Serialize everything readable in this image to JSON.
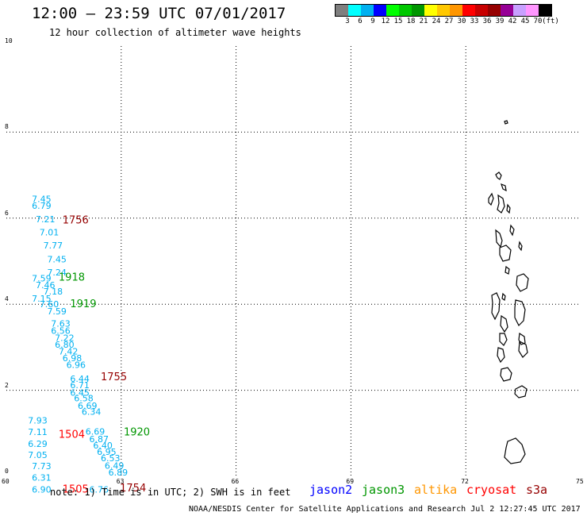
{
  "header": {
    "title": "12:00 – 23:59 UTC 07/01/2017",
    "subtitle": "12 hour collection of altimeter wave heights"
  },
  "colorbar": {
    "colors": [
      "#7f7f7f",
      "#00ffff",
      "#00b0f0",
      "#0000ff",
      "#00ff00",
      "#00c800",
      "#009600",
      "#ffff00",
      "#ffc800",
      "#ff9600",
      "#ff0000",
      "#c80000",
      "#960000",
      "#960096",
      "#c8a0ff",
      "#ff96ff",
      "#000000"
    ],
    "labels": [
      "3",
      "6",
      "9",
      "12",
      "15",
      "18",
      "21",
      "24",
      "27",
      "30",
      "33",
      "36",
      "39",
      "42",
      "45",
      "70",
      "(ft)"
    ]
  },
  "axes": {
    "x_ticks": [
      "60",
      "63",
      "66",
      "69",
      "72",
      "75"
    ],
    "y_ticks": [
      "0",
      "2",
      "4",
      "6",
      "8",
      "10"
    ]
  },
  "map_data": {
    "swh_cyan": [
      {
        "lon": 60.5,
        "lat": 6.45,
        "v": "7.45"
      },
      {
        "lon": 60.5,
        "lat": 6.29,
        "v": "6.79"
      },
      {
        "lon": 60.6,
        "lat": 5.98,
        "v": "7.21"
      },
      {
        "lon": 60.7,
        "lat": 5.67,
        "v": "7.01"
      },
      {
        "lon": 60.8,
        "lat": 5.37,
        "v": "7.77"
      },
      {
        "lon": 60.9,
        "lat": 5.05,
        "v": "7.45"
      },
      {
        "lon": 60.9,
        "lat": 4.74,
        "v": "7.24"
      },
      {
        "lon": 60.5,
        "lat": 4.6,
        "v": "7.59"
      },
      {
        "lon": 60.6,
        "lat": 4.45,
        "v": "7.46"
      },
      {
        "lon": 60.8,
        "lat": 4.3,
        "v": "7.18"
      },
      {
        "lon": 60.5,
        "lat": 4.13,
        "v": "7.15"
      },
      {
        "lon": 60.7,
        "lat": 4.0,
        "v": "7.60"
      },
      {
        "lon": 60.9,
        "lat": 3.84,
        "v": "7.59"
      },
      {
        "lon": 61.0,
        "lat": 3.55,
        "v": "7.63"
      },
      {
        "lon": 61.0,
        "lat": 3.39,
        "v": "6.56"
      },
      {
        "lon": 61.1,
        "lat": 3.22,
        "v": "7.22"
      },
      {
        "lon": 61.1,
        "lat": 3.06,
        "v": "6.80"
      },
      {
        "lon": 61.2,
        "lat": 2.91,
        "v": "7.42"
      },
      {
        "lon": 61.3,
        "lat": 2.75,
        "v": "6.98"
      },
      {
        "lon": 61.4,
        "lat": 2.59,
        "v": "6.96"
      },
      {
        "lon": 61.5,
        "lat": 2.27,
        "v": "6.44"
      },
      {
        "lon": 61.5,
        "lat": 2.12,
        "v": "6.71"
      },
      {
        "lon": 61.5,
        "lat": 1.95,
        "v": "6.45"
      },
      {
        "lon": 61.6,
        "lat": 1.82,
        "v": "6.58"
      },
      {
        "lon": 61.7,
        "lat": 1.64,
        "v": "6.69"
      },
      {
        "lon": 61.8,
        "lat": 1.5,
        "v": "6.34"
      },
      {
        "lon": 60.4,
        "lat": 1.3,
        "v": "7.93"
      },
      {
        "lon": 61.9,
        "lat": 1.04,
        "v": "6.69"
      },
      {
        "lon": 60.4,
        "lat": 1.03,
        "v": "7.11"
      },
      {
        "lon": 62.0,
        "lat": 0.87,
        "v": "6.87"
      },
      {
        "lon": 60.4,
        "lat": 0.76,
        "v": "6.29"
      },
      {
        "lon": 62.1,
        "lat": 0.72,
        "v": "6.40"
      },
      {
        "lon": 62.2,
        "lat": 0.57,
        "v": "6.95"
      },
      {
        "lon": 60.4,
        "lat": 0.5,
        "v": "7.05"
      },
      {
        "lon": 62.3,
        "lat": 0.42,
        "v": "6.53"
      },
      {
        "lon": 60.5,
        "lat": 0.24,
        "v": "7.73"
      },
      {
        "lon": 62.4,
        "lat": 0.25,
        "v": "6.49"
      },
      {
        "lon": 60.5,
        "lat": -0.03,
        "v": "6.31"
      },
      {
        "lon": 62.5,
        "lat": 0.09,
        "v": "6.89"
      },
      {
        "lon": 60.5,
        "lat": -0.3,
        "v": "6.90"
      },
      {
        "lon": 62.0,
        "lat": -0.3,
        "v": "6.76"
      }
    ],
    "times": [
      {
        "lon": 61.3,
        "lat": 5.95,
        "v": "1756",
        "color": "#960000"
      },
      {
        "lon": 61.2,
        "lat": 4.62,
        "v": "1918",
        "color": "#009600"
      },
      {
        "lon": 61.5,
        "lat": 4.0,
        "v": "1919",
        "color": "#009600"
      },
      {
        "lon": 62.3,
        "lat": 2.31,
        "v": "1755",
        "color": "#960000"
      },
      {
        "lon": 62.9,
        "lat": 1.02,
        "v": "1920",
        "color": "#009600"
      },
      {
        "lon": 61.2,
        "lat": 0.97,
        "v": "1504",
        "color": "#ff0000"
      },
      {
        "lon": 61.3,
        "lat": -0.3,
        "v": "1505",
        "color": "#ff0000"
      },
      {
        "lon": 62.8,
        "lat": -0.28,
        "v": "1754",
        "color": "#960000"
      }
    ]
  },
  "footer": {
    "note": "note: 1) Time is in UTC; 2) SWH is in feet",
    "legend": [
      {
        "label": "jason2",
        "color": "#0000ff"
      },
      {
        "label": "jason3",
        "color": "#009600"
      },
      {
        "label": "altika",
        "color": "#ff9600"
      },
      {
        "label": "cryosat",
        "color": "#ff0000"
      },
      {
        "label": "s3a",
        "color": "#960000"
      }
    ],
    "credit": "NOAA/NESDIS Center for Satellite Applications and Research   Jul  2 12:27:45 UTC 2017"
  }
}
